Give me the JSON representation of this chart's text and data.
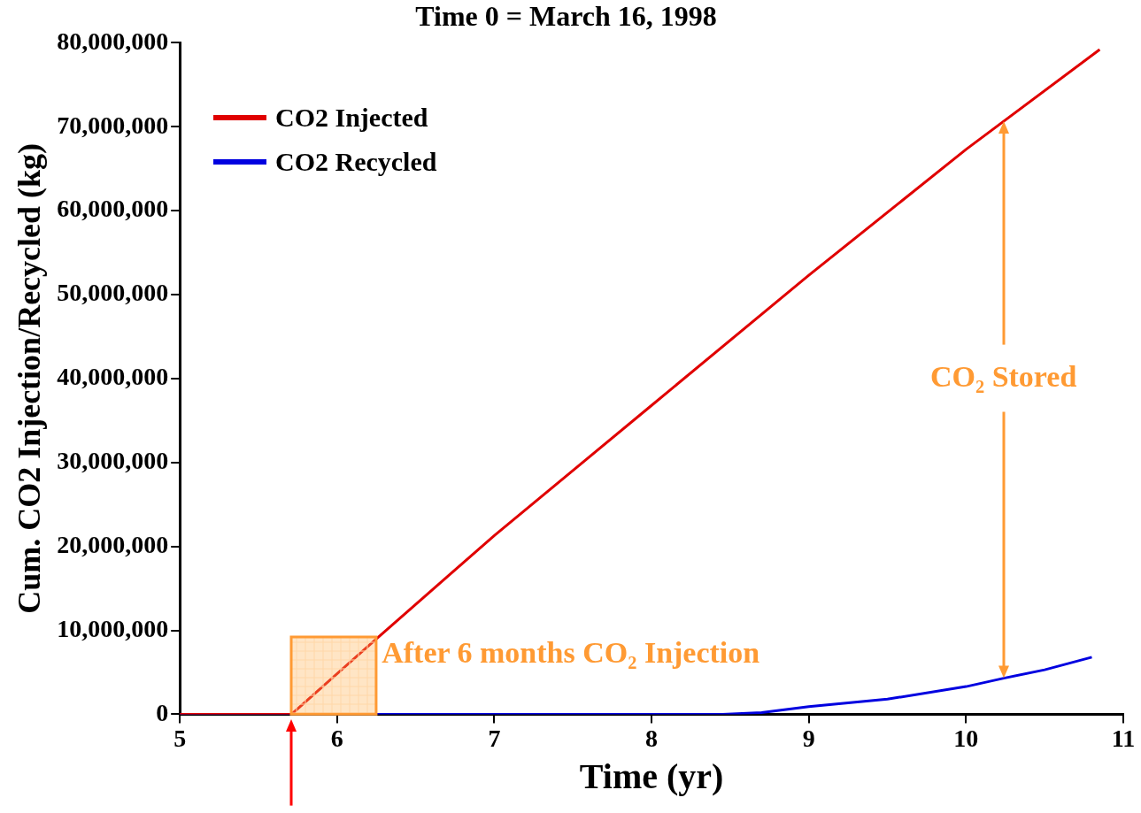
{
  "chart_data": {
    "type": "line",
    "title": "Time 0 = March 16, 1998",
    "xlabel": "Time (yr)",
    "ylabel": "Cum. CO2 Injection/Recycled (kg)",
    "xlim": [
      5,
      11
    ],
    "xticks": [
      5,
      6,
      7,
      8,
      9,
      10,
      11
    ],
    "ylim": [
      0,
      80000000
    ],
    "yticks": [
      {
        "value": 0,
        "label": "0"
      },
      {
        "value": 10000000,
        "label": "10,000,000"
      },
      {
        "value": 20000000,
        "label": "20,000,000"
      },
      {
        "value": 30000000,
        "label": "30,000,000"
      },
      {
        "value": 40000000,
        "label": "40,000,000"
      },
      {
        "value": 50000000,
        "label": "50,000,000"
      },
      {
        "value": 60000000,
        "label": "60,000,000"
      },
      {
        "value": 70000000,
        "label": "70,000,000"
      },
      {
        "value": 80000000,
        "label": "80,000,000"
      }
    ],
    "series": [
      {
        "name": "CO2 Injected",
        "color": "#e00000",
        "x": [
          5,
          5.71,
          6.25,
          7,
          8,
          9,
          10,
          10.85
        ],
        "values": [
          0,
          0,
          9000000,
          21300000,
          36800000,
          52300000,
          67300000,
          79200000
        ]
      },
      {
        "name": "CO2 Recycled",
        "color": "#0000e0",
        "x": [
          5,
          8.45,
          8.7,
          9,
          9.5,
          10,
          10.24,
          10.5,
          10.8
        ],
        "values": [
          0,
          0,
          200000,
          900000,
          1800000,
          3300000,
          4300000,
          5300000,
          6800000
        ]
      }
    ],
    "annotations": [
      "CO₂ Stored",
      {
        "text": "After 6 months CO₂ Injection",
        "x": 6.25,
        "y": 9200000
      }
    ],
    "legend": "top left",
    "grid": false,
    "marker": "none",
    "line_style": "solid"
  }
}
